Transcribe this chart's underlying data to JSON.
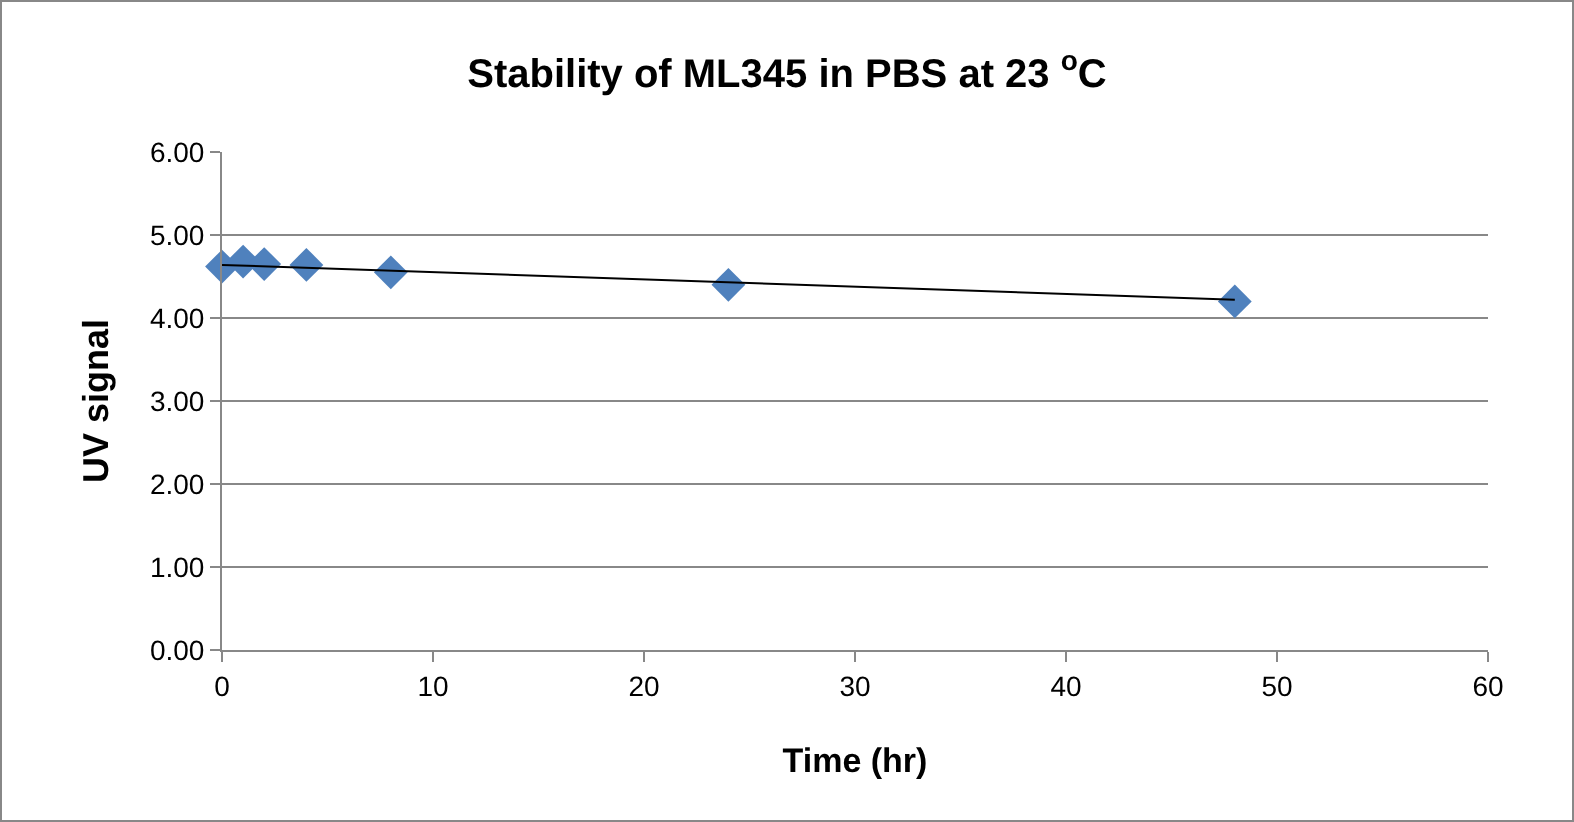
{
  "chart_data": {
    "type": "scatter",
    "title": "Stability of ML345 in PBS at 23 $^{o}$C",
    "xlabel": "Time (hr)",
    "ylabel": "UV signal",
    "marker": "diamond",
    "grid": "y",
    "x": [
      0,
      1,
      2,
      4,
      8,
      24,
      48
    ],
    "series": [
      {
        "color": "#4f81bd",
        "values": [
          4.62,
          4.68,
          4.65,
          4.64,
          4.55,
          4.4,
          4.2
        ]
      },
      {
        "type": "line",
        "color": "#000000",
        "x": [
          0,
          48
        ],
        "values": [
          4.64,
          4.22
        ],
        "marker": "none"
      }
    ],
    "xlim": [
      0,
      60
    ],
    "xticks": [
      0,
      10,
      20,
      30,
      40,
      50,
      60
    ],
    "ylim": [
      0,
      6
    ],
    "yticks": [
      {
        "value": 0,
        "label": "0.00"
      },
      {
        "value": 1,
        "label": "1.00"
      },
      {
        "value": 2,
        "label": "2.00"
      },
      {
        "value": 3,
        "label": "3.00"
      },
      {
        "value": 4,
        "label": "4.00"
      },
      {
        "value": 5,
        "label": "5.00"
      },
      {
        "value": 6,
        "label": "6.00"
      }
    ]
  }
}
